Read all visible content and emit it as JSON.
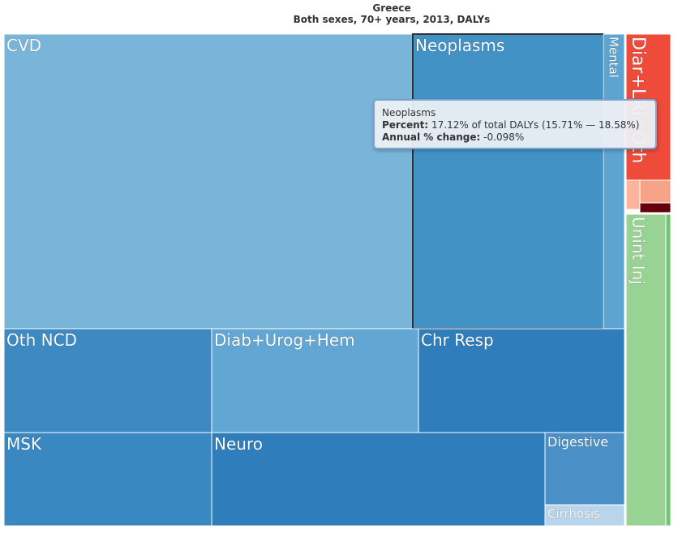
{
  "header": {
    "location": "Greece",
    "subtitle": "Both sexes, 70+ years, 2013, DALYs"
  },
  "chart_data": {
    "type": "treemap",
    "title": "Greece",
    "subtitle": "Both sexes, 70+ years, 2013, DALYs",
    "nodes": [
      {
        "label": "CVD",
        "color": "#79b4d9"
      },
      {
        "label": "Neoplasms",
        "color": "#4292c6",
        "percent": 17.12,
        "highlighted": true
      },
      {
        "label": "Mental",
        "color": "#5ea4d0"
      },
      {
        "label": "Oth NCD",
        "color": "#3d8ac3"
      },
      {
        "label": "Diab+Urog+Hem",
        "color": "#62a6d3"
      },
      {
        "label": "Chr Resp",
        "color": "#2f7dbb"
      },
      {
        "label": "MSK",
        "color": "#3a88c2"
      },
      {
        "label": "Neuro",
        "color": "#2f7dbb"
      },
      {
        "label": "Digestive",
        "color": "#4a90c7"
      },
      {
        "label": "Cirrhosis",
        "color": "#b9d5ec"
      },
      {
        "label": "Diar+LRI+Oth",
        "color": "#ef4b3a"
      },
      {
        "label": "",
        "color": "#fcb59b"
      },
      {
        "label": "",
        "color": "#f6a388"
      },
      {
        "label": "",
        "color": "#67000d"
      },
      {
        "label": "Unint Inj",
        "color": "#99d394"
      },
      {
        "label": "",
        "color": "#74c476"
      }
    ]
  },
  "tooltip": {
    "name": "Neoplasms",
    "percent_label": "Percent:",
    "percent_value": "17.12% of total DALYs (15.71% — 18.58%)",
    "change_label": "Annual % change:",
    "change_value": "-0.098%"
  }
}
